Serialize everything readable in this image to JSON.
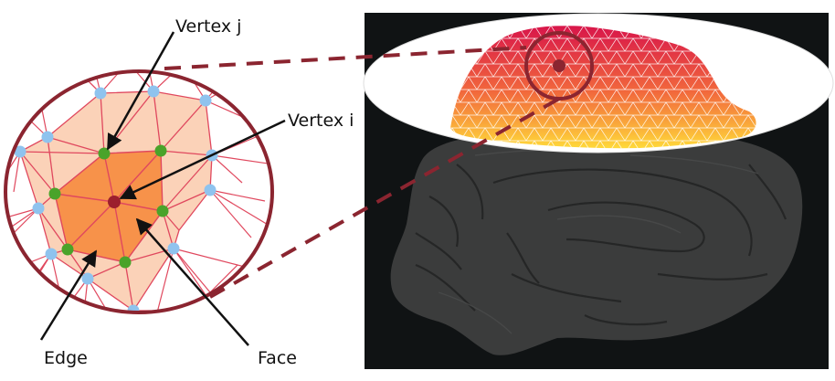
{
  "labels": {
    "vertex_j": "Vertex j",
    "vertex_i": "Vertex i",
    "edge": "Edge",
    "face": "Face"
  },
  "colors": {
    "ring": "#8b2530",
    "mesh_line": "#e0485e",
    "neighborhood_fill": "#fbd2b8",
    "one_ring_fill": "#f7924a",
    "center_vertex": "#9c1f2d",
    "first_ring_vertex": "#4aa32a",
    "outer_vertex": "#8fc3ee",
    "panel_background": "#101314",
    "brain": "#3b3c3c",
    "arrow": "#111111"
  }
}
